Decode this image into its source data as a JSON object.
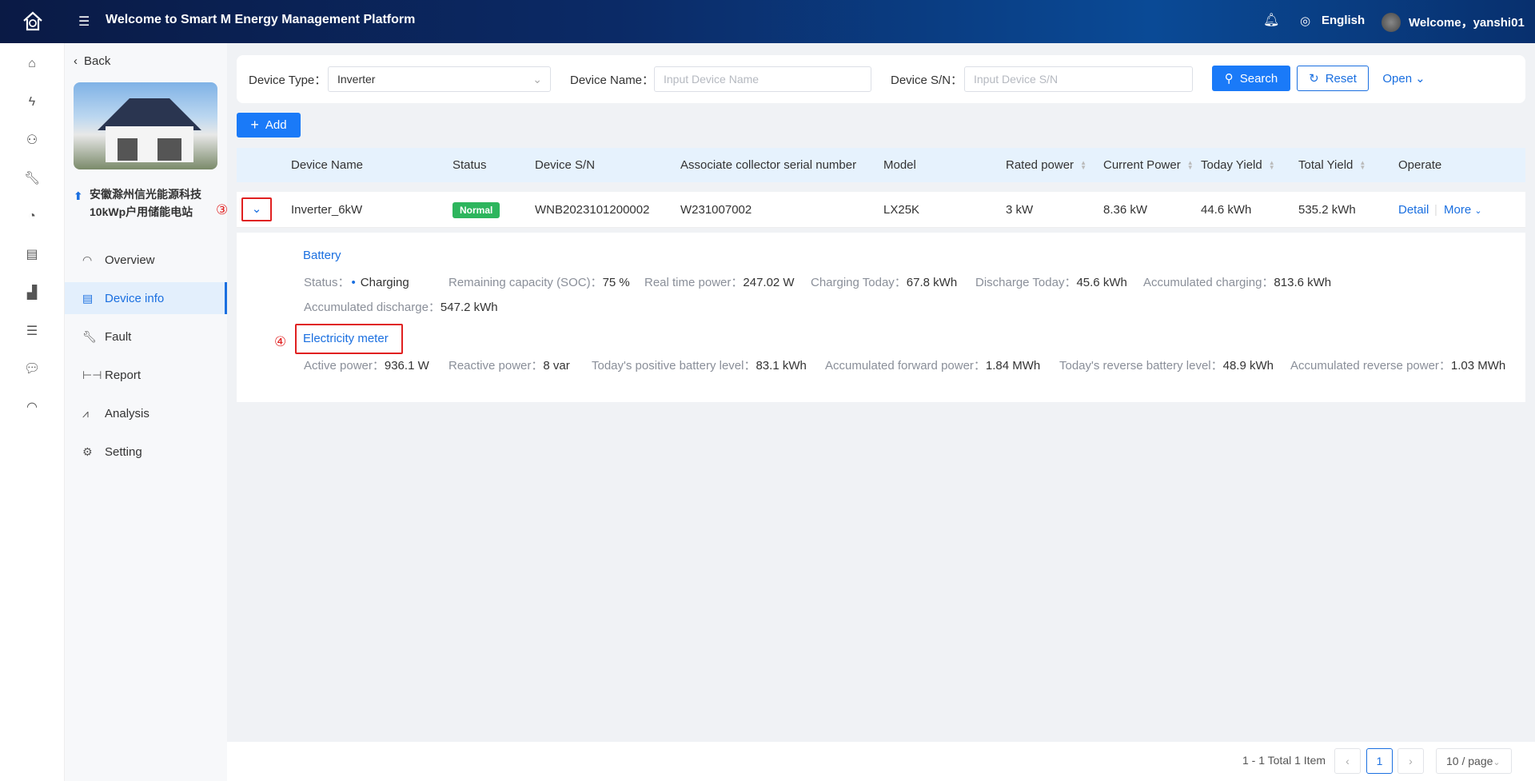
{
  "header": {
    "title": "Welcome to Smart M Energy Management Platform",
    "language": "English",
    "welcome": "Welcome，yanshi01"
  },
  "rail": {
    "icons": [
      "home-icon",
      "lightning-icon",
      "users-icon",
      "wrench-icon",
      "pie-chart-icon",
      "report-search-icon",
      "area-chart-icon",
      "sliders-icon",
      "chat-icon",
      "gauge-icon"
    ]
  },
  "panel": {
    "back": "Back",
    "station_name": "安徽滁州信光能源科技10kWp户用储能电站",
    "menu": [
      {
        "label": "Overview",
        "icon": "gauge-icon"
      },
      {
        "label": "Device info",
        "icon": "list-icon",
        "active": true
      },
      {
        "label": "Fault",
        "icon": "wrench-icon"
      },
      {
        "label": "Report",
        "icon": "report-icon"
      },
      {
        "label": "Analysis",
        "icon": "line-chart-icon"
      },
      {
        "label": "Setting",
        "icon": "gear-icon"
      }
    ]
  },
  "filter": {
    "device_type_label": "Device Type：",
    "device_type_value": "Inverter",
    "device_name_label": "Device Name：",
    "device_name_placeholder": "Input Device Name",
    "device_sn_label": "Device S/N：",
    "device_sn_placeholder": "Input Device S/N",
    "search": "Search",
    "reset": "Reset",
    "open": "Open"
  },
  "toolbar": {
    "add": "Add"
  },
  "table": {
    "columns": [
      "Device Name",
      "Status",
      "Device S/N",
      "Associate collector serial number",
      "Model",
      "Rated power",
      "Current Power",
      "Today Yield",
      "Total Yield",
      "Operate"
    ],
    "rows": [
      {
        "device_name": "Inverter_6kW",
        "status": "Normal",
        "sn": "WNB2023101200002",
        "collector_sn": "W231007002",
        "model": "LX25K",
        "rated_power": "3 kW",
        "current_power": "8.36 kW",
        "today_yield": "44.6 kWh",
        "total_yield": "535.2 kWh",
        "detail": "Detail",
        "more": "More"
      }
    ]
  },
  "expanded": {
    "battery": {
      "title": "Battery",
      "items": [
        {
          "k": "Status：",
          "v": "Charging"
        },
        {
          "k": "Remaining capacity (SOC)：",
          "v": "75 %"
        },
        {
          "k": "Real time power：",
          "v": "247.02 W"
        },
        {
          "k": "Charging Today：",
          "v": "67.8 kWh"
        },
        {
          "k": "Discharge Today：",
          "v": "45.6 kWh"
        },
        {
          "k": "Accumulated charging：",
          "v": "813.6 kWh"
        },
        {
          "k": "Accumulated discharge：",
          "v": "547.2 kWh"
        }
      ]
    },
    "meter": {
      "title": "Electricity meter",
      "items": [
        {
          "k": "Active power：",
          "v": "936.1 W"
        },
        {
          "k": "Reactive power：",
          "v": "8 var"
        },
        {
          "k": "Today's positive battery level：",
          "v": "83.1 kWh"
        },
        {
          "k": "Accumulated forward power：",
          "v": "1.84 MWh"
        },
        {
          "k": "Today's reverse battery level：",
          "v": "48.9 kWh"
        },
        {
          "k": "Accumulated reverse power：",
          "v": "1.03 MWh"
        }
      ]
    }
  },
  "annotations": {
    "step3": "③",
    "step4": "④"
  },
  "pagination": {
    "summary": "1 - 1 Total 1 Item",
    "current_page": "1",
    "page_size": "10 / page"
  },
  "colors": {
    "primary": "#1a6fe0",
    "success": "#2db55d",
    "annotation": "#e02020",
    "header_dark": "#0a1a45"
  }
}
